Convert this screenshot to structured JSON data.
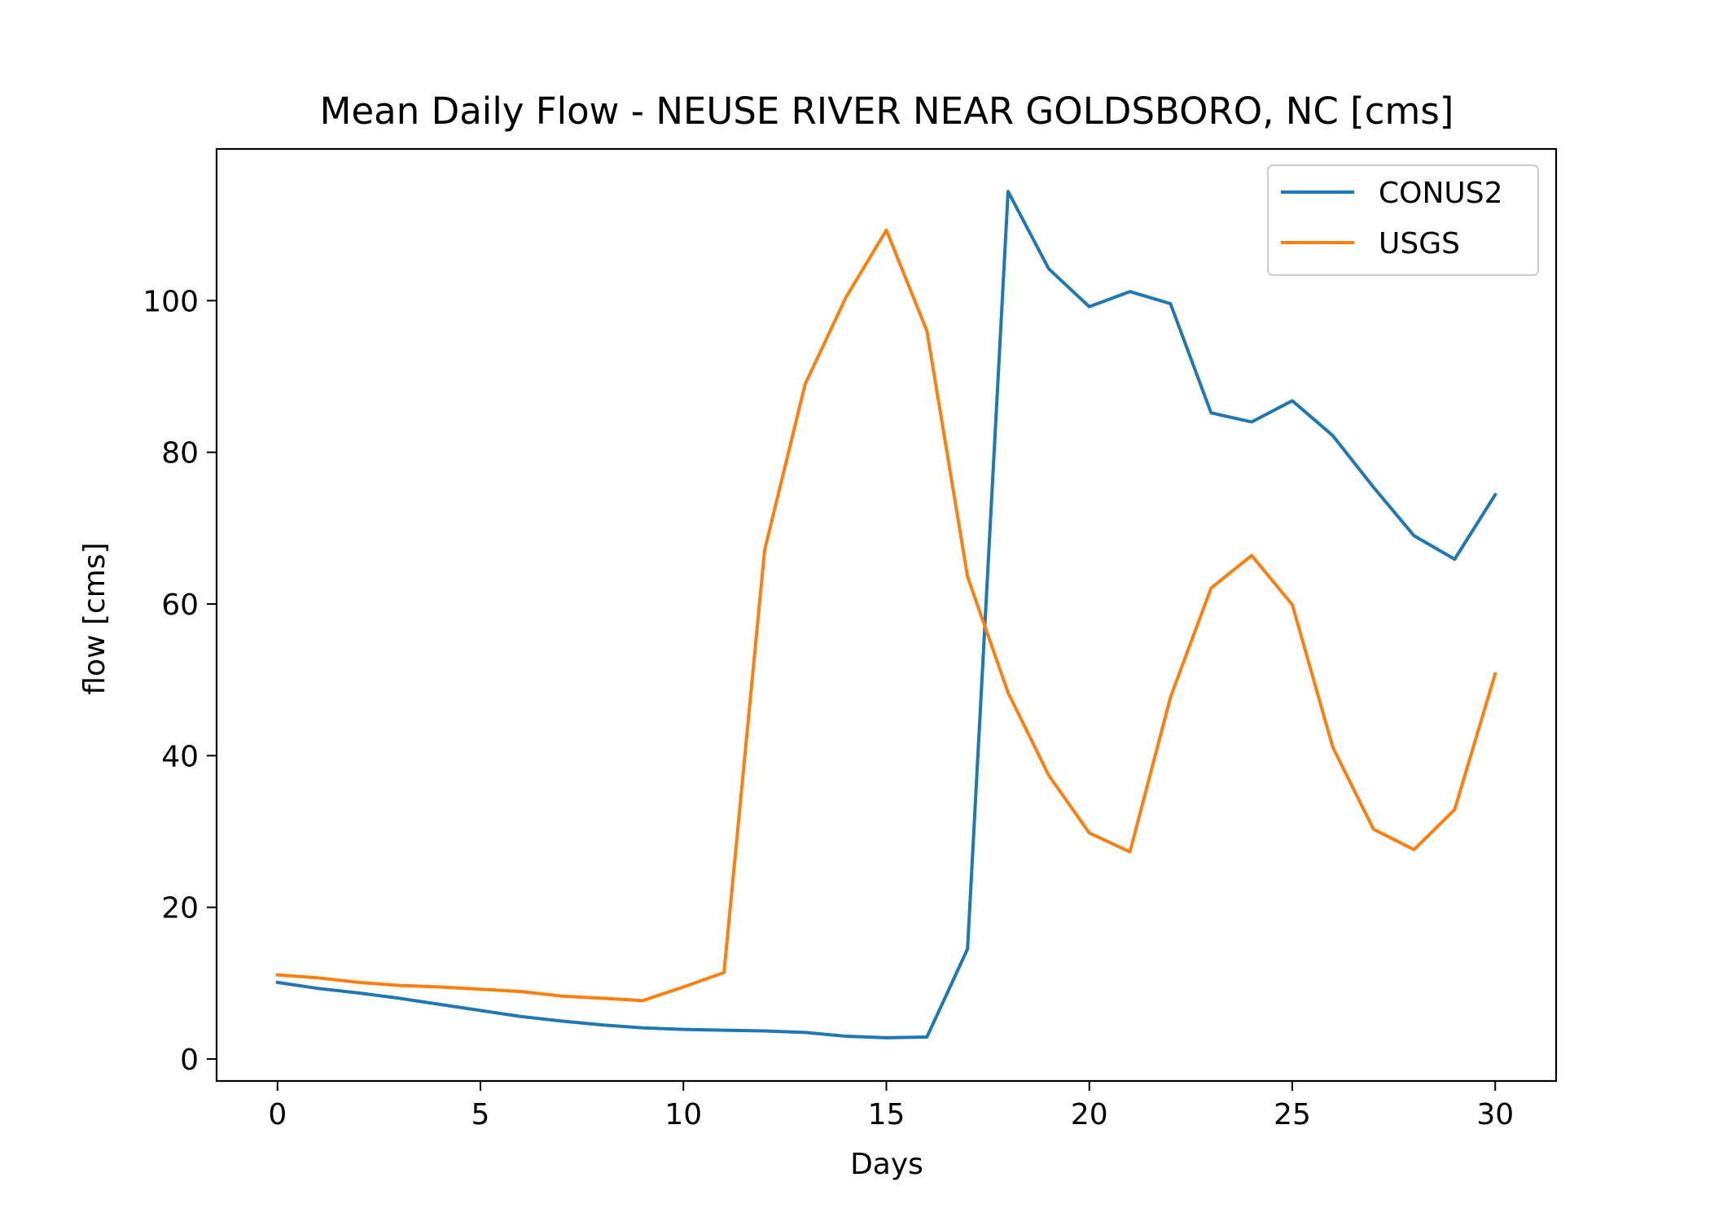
{
  "chart_data": {
    "type": "line",
    "title": "Mean Daily Flow - NEUSE RIVER NEAR GOLDSBORO, NC [cms]",
    "xlabel": "Days",
    "ylabel": "flow [cms]",
    "xlim": [
      -1.5,
      31.5
    ],
    "ylim": [
      -2.9,
      120
    ],
    "xticks": [
      0,
      5,
      10,
      15,
      20,
      25,
      30
    ],
    "yticks": [
      0,
      20,
      40,
      60,
      80,
      100
    ],
    "grid": false,
    "legend": "top-right",
    "x": [
      0,
      1,
      2,
      3,
      4,
      5,
      6,
      7,
      8,
      9,
      10,
      11,
      12,
      13,
      14,
      15,
      16,
      17,
      18,
      19,
      20,
      21,
      22,
      23,
      24,
      25,
      26,
      27,
      28,
      29,
      30
    ],
    "series": [
      {
        "name": "CONUS2",
        "color": "#1f77b4",
        "values": [
          10.1,
          9.3,
          8.7,
          8.0,
          7.2,
          6.4,
          5.6,
          5.0,
          4.5,
          4.1,
          3.9,
          3.8,
          3.7,
          3.5,
          3.0,
          2.8,
          2.9,
          14.5,
          114.4,
          104.2,
          99.2,
          101.2,
          99.6,
          85.2,
          84.0,
          86.8,
          82.2,
          75.4,
          69.0,
          65.9,
          74.4
        ]
      },
      {
        "name": "USGS",
        "color": "#ff7f0e",
        "values": [
          11.1,
          10.7,
          10.1,
          9.7,
          9.5,
          9.2,
          8.9,
          8.3,
          8.0,
          7.7,
          9.5,
          11.4,
          67.1,
          89.0,
          100.4,
          109.3,
          96.0,
          63.6,
          48.3,
          37.4,
          29.8,
          27.3,
          47.7,
          62.1,
          66.4,
          59.9,
          41.1,
          30.3,
          27.6,
          32.9,
          50.8
        ]
      }
    ]
  }
}
